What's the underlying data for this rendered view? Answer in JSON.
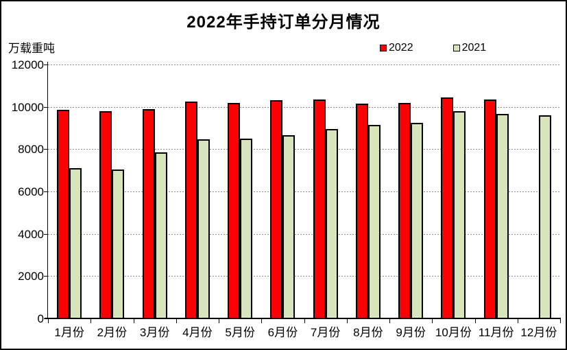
{
  "title": "2022年手持订单分月情况",
  "unit_label": "万载重吨",
  "legend": [
    {
      "label": "2022",
      "color": "#FF0000"
    },
    {
      "label": "2021",
      "color": "#D8E4BC"
    }
  ],
  "colors": {
    "bar_border": "#000000",
    "gridline": "#8a8a8a",
    "background": "#ffffff"
  },
  "chart_data": {
    "type": "bar",
    "title": "2022年手持订单分月情况",
    "ylabel": "万载重吨",
    "xlabel": "",
    "categories": [
      "1月份",
      "2月份",
      "3月份",
      "4月份",
      "5月份",
      "6月份",
      "7月份",
      "8月份",
      "9月份",
      "10月份",
      "11月份",
      "12月份"
    ],
    "series": [
      {
        "name": "2022",
        "color": "#FF0000",
        "values": [
          9850,
          9800,
          9900,
          10250,
          10200,
          10300,
          10350,
          10150,
          10200,
          10450,
          10350,
          null
        ]
      },
      {
        "name": "2021",
        "color": "#D8E4BC",
        "values": [
          7100,
          7050,
          7850,
          8450,
          8500,
          8650,
          8950,
          9150,
          9250,
          9800,
          9650,
          9600
        ]
      }
    ],
    "ylim": [
      0,
      12000
    ],
    "yticks": [
      0,
      2000,
      4000,
      6000,
      8000,
      10000,
      12000
    ],
    "grid": true,
    "grid_style": "dotted",
    "legend_position": "top-right",
    "bar_outline": "black"
  }
}
